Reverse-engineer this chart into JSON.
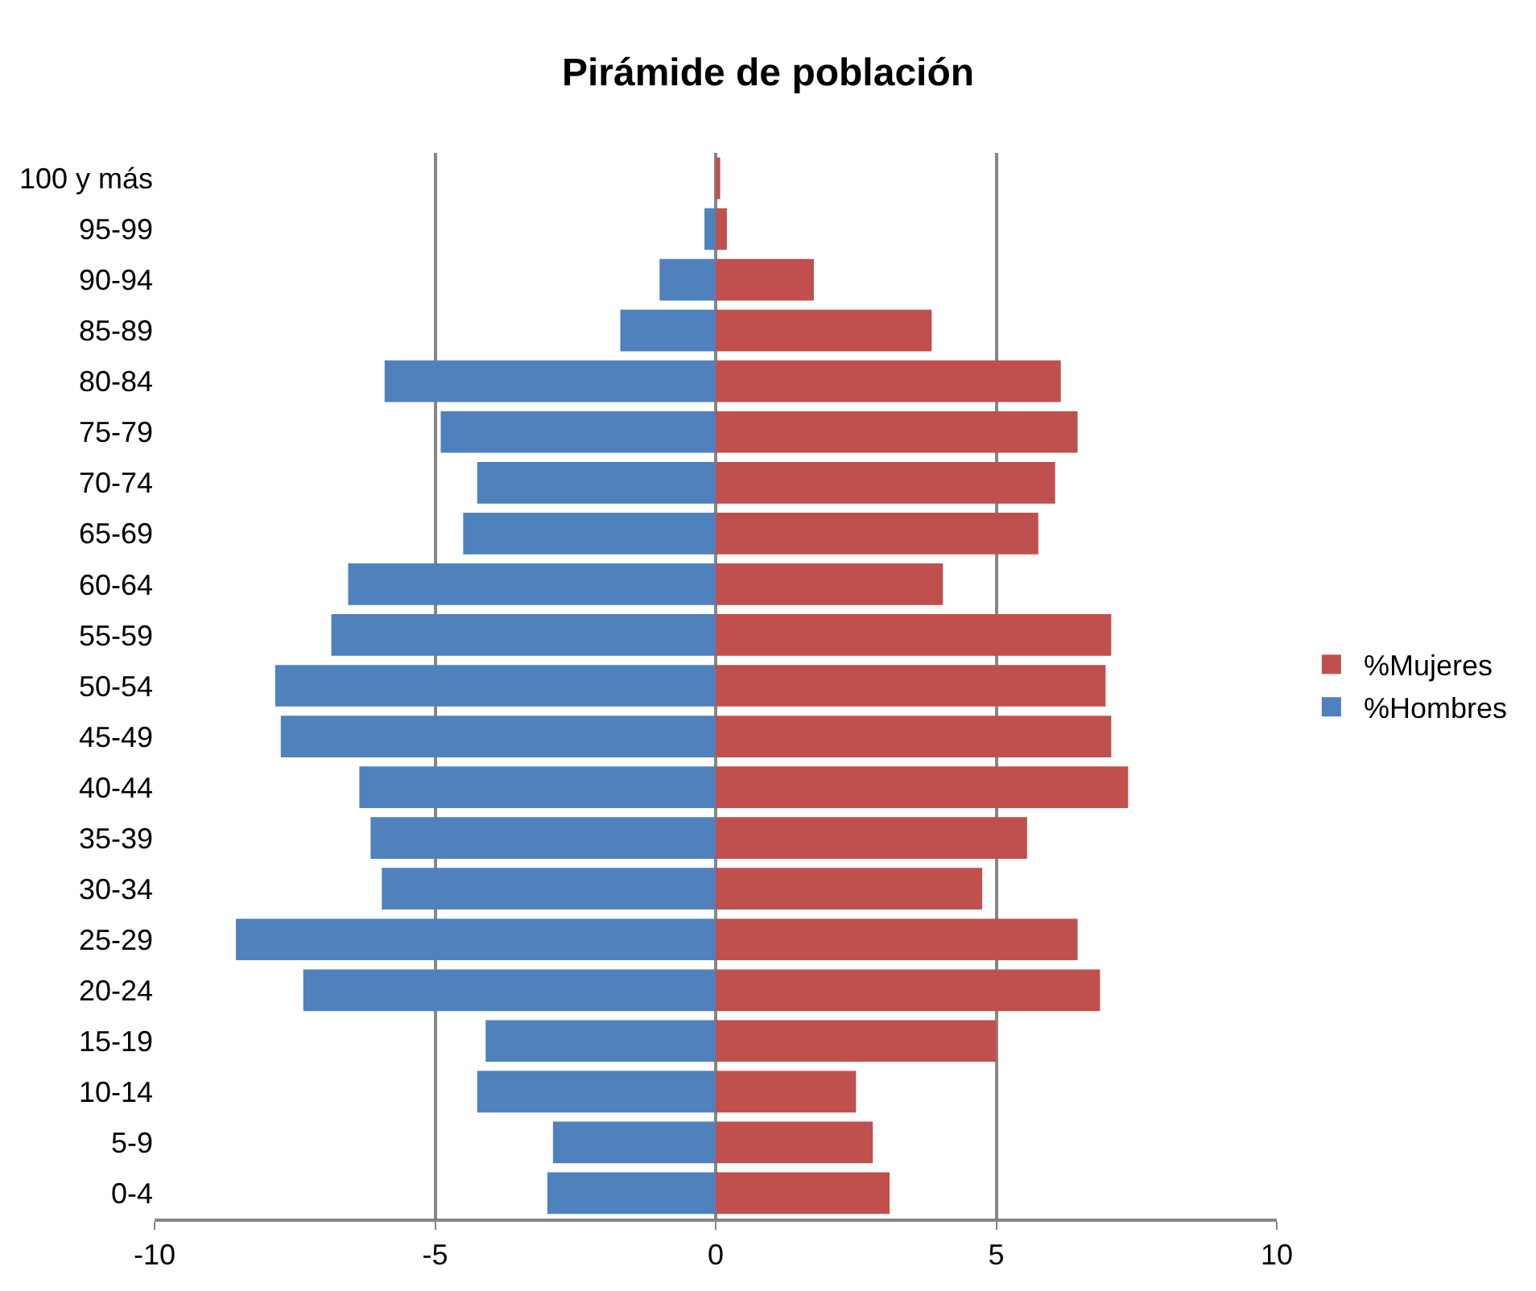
{
  "chart_data": {
    "type": "bar",
    "title": "Pirámide de población",
    "orientation": "horizontal",
    "stacked": true,
    "categories": [
      "100 y más",
      "95-99",
      "90-94",
      "85-89",
      "80-84",
      "75-79",
      "70-74",
      "65-69",
      "60-64",
      "55-59",
      "50-54",
      "45-49",
      "40-44",
      "35-39",
      "30-34",
      "25-29",
      "20-24",
      "15-19",
      "10-14",
      "5-9",
      "0-4"
    ],
    "series": [
      {
        "name": "%Mujeres",
        "color": "#c0504d",
        "values": [
          0.08,
          0.2,
          1.75,
          3.85,
          6.15,
          6.45,
          6.05,
          5.75,
          4.05,
          7.05,
          6.95,
          7.05,
          7.35,
          5.55,
          4.75,
          6.45,
          6.85,
          5.0,
          2.5,
          2.8,
          3.1
        ]
      },
      {
        "name": "%Hombres",
        "color": "#4f81bd",
        "values": [
          0,
          -0.2,
          -1.0,
          -1.7,
          -5.9,
          -4.9,
          -4.25,
          -4.5,
          -6.55,
          -6.85,
          -7.85,
          -7.75,
          -6.35,
          -6.15,
          -5.95,
          -8.55,
          -7.35,
          -4.1,
          -4.25,
          -2.9,
          -3.0
        ]
      }
    ],
    "xlim": [
      -10,
      10
    ],
    "xticks": [
      -10,
      -5,
      0,
      5,
      10
    ],
    "grid": "x",
    "legend": "right"
  }
}
